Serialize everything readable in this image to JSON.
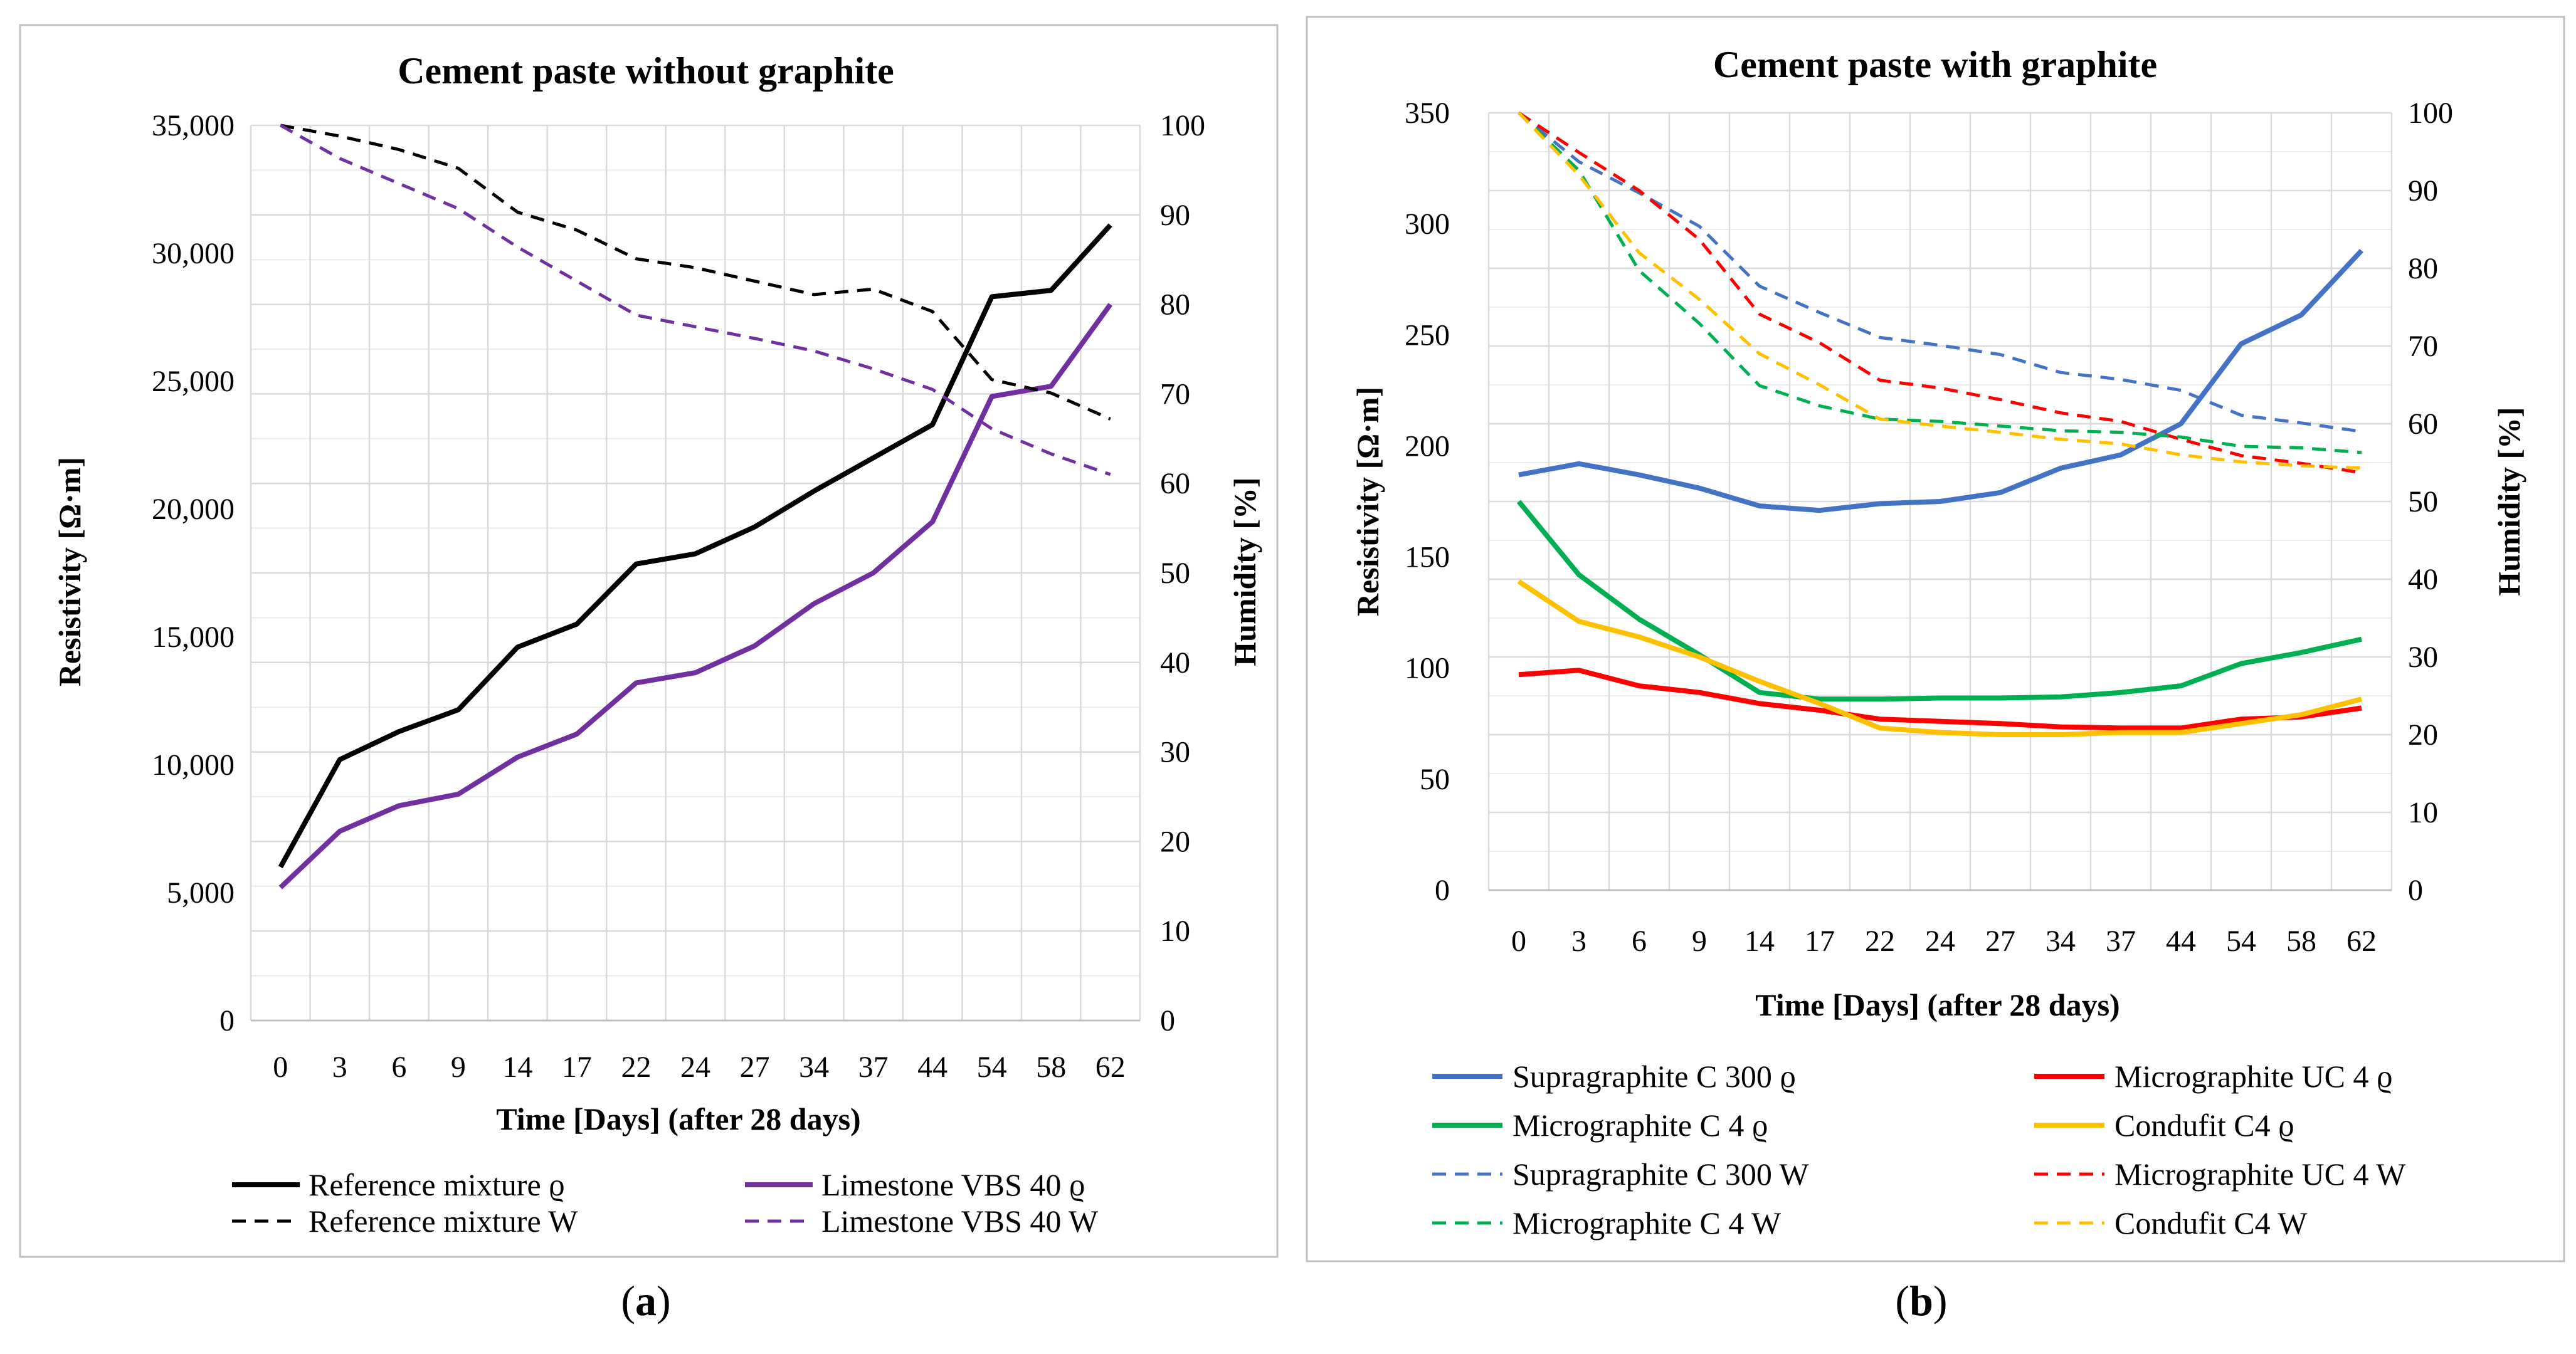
{
  "chart_data": [
    {
      "type": "line",
      "panel_label": "a",
      "title": "Cement paste without graphite",
      "xlabel": "Time [Days] (after 28 days)",
      "ylabel": "Resistivity [Ω·m]",
      "y2label": "Humidity [%]",
      "categories": [
        "0",
        "3",
        "6",
        "9",
        "14",
        "17",
        "22",
        "24",
        "27",
        "34",
        "37",
        "44",
        "54",
        "58",
        "62"
      ],
      "ylim": [
        0,
        35000
      ],
      "yticks": [
        "0",
        "5,000",
        "10,000",
        "15,000",
        "20,000",
        "25,000",
        "30,000",
        "35,000"
      ],
      "y2lim": [
        0,
        100
      ],
      "y2ticks": [
        "0",
        "10",
        "20",
        "30",
        "40",
        "50",
        "60",
        "70",
        "80",
        "90",
        "100"
      ],
      "grid": true,
      "legend_position": "bottom",
      "series": [
        {
          "name": "Reference mixture ϱ",
          "axis": "left",
          "color": "#000000",
          "dash": "solid",
          "values": [
            6000,
            10200,
            11300,
            12150,
            14600,
            15500,
            17850,
            18250,
            19300,
            20700,
            22000,
            23300,
            28300,
            28550,
            31100
          ]
        },
        {
          "name": "Limestone VBS 40 ϱ",
          "axis": "left",
          "color": "#7030A0",
          "dash": "solid",
          "values": [
            5200,
            7400,
            8400,
            8850,
            10300,
            11200,
            13200,
            13600,
            14650,
            16300,
            17500,
            19500,
            24400,
            24800,
            28000
          ]
        },
        {
          "name": "Reference mixture W",
          "axis": "right",
          "color": "#000000",
          "dash": "dashed",
          "values": [
            100,
            98.8,
            97.3,
            95.2,
            90.3,
            88.3,
            85.1,
            84.1,
            82.6,
            81.1,
            81.7,
            79.2,
            71.6,
            70.1,
            67.2
          ]
        },
        {
          "name": "Limestone VBS 40 W",
          "axis": "right",
          "color": "#7030A0",
          "dash": "dashed",
          "values": [
            100,
            96.3,
            93.5,
            90.7,
            86.4,
            82.6,
            78.8,
            77.5,
            76.2,
            74.8,
            72.8,
            70.5,
            66.1,
            63.3,
            61
          ]
        }
      ]
    },
    {
      "type": "line",
      "panel_label": "b",
      "title": "Cement paste with graphite",
      "xlabel": "Time [Days] (after 28 days)",
      "ylabel": "Resistivity [Ω·m]",
      "y2label": "Humidity [%]",
      "categories": [
        "0",
        "3",
        "6",
        "9",
        "14",
        "17",
        "22",
        "24",
        "27",
        "34",
        "37",
        "44",
        "54",
        "58",
        "62"
      ],
      "ylim": [
        0,
        350
      ],
      "yticks": [
        "0",
        "50",
        "100",
        "150",
        "200",
        "250",
        "300",
        "350"
      ],
      "y2lim": [
        0,
        100
      ],
      "y2ticks": [
        "0",
        "10",
        "20",
        "30",
        "40",
        "50",
        "60",
        "70",
        "80",
        "90",
        "100"
      ],
      "grid": true,
      "legend_position": "bottom",
      "series": [
        {
          "name": "Supragraphite C 300 ϱ",
          "axis": "left",
          "color": "#4472C4",
          "dash": "solid",
          "values": [
            187,
            192,
            187,
            181,
            173,
            171,
            174,
            175,
            179,
            190,
            196,
            210,
            246,
            259,
            288
          ]
        },
        {
          "name": "Micrographite UC 4 ϱ",
          "axis": "left",
          "color": "#FF0000",
          "dash": "solid",
          "values": [
            97,
            99,
            92,
            89,
            84,
            81,
            77,
            76,
            75,
            73.5,
            73,
            73,
            77,
            78,
            82
          ]
        },
        {
          "name": "Micrographite C 4 ϱ",
          "axis": "left",
          "color": "#00B050",
          "dash": "solid",
          "values": [
            175,
            142,
            122,
            106,
            89,
            86,
            86,
            86.5,
            86.5,
            87,
            89,
            92,
            102,
            107,
            113
          ]
        },
        {
          "name": "Condufit C4 ϱ",
          "axis": "left",
          "color": "#FFC000",
          "dash": "solid",
          "values": [
            139,
            121,
            114,
            105,
            94,
            84,
            73,
            71,
            70,
            70,
            71,
            71,
            75,
            79,
            86
          ]
        },
        {
          "name": "Supragraphite C 300 W",
          "axis": "right",
          "color": "#4472C4",
          "dash": "dashed",
          "values": [
            100,
            93.7,
            89.7,
            85.4,
            77.7,
            74.3,
            71.1,
            70.1,
            68.9,
            66.6,
            65.7,
            64.3,
            61.1,
            60.1,
            59
          ]
        },
        {
          "name": "Micrographite UC 4 W",
          "axis": "right",
          "color": "#FF0000",
          "dash": "dashed",
          "values": [
            100,
            94.9,
            90,
            83.7,
            74.1,
            70.4,
            65.6,
            64.6,
            63.1,
            61.4,
            60.3,
            58,
            55.9,
            54.9,
            53.7
          ]
        },
        {
          "name": "Micrographite C 4 W",
          "axis": "right",
          "color": "#00B050",
          "dash": "dashed",
          "values": [
            100,
            92.6,
            79.7,
            72.9,
            64.9,
            62.3,
            60.6,
            60.3,
            59.7,
            59.1,
            58.9,
            58.3,
            57.1,
            56.9,
            56.3
          ]
        },
        {
          "name": "Condufit C4 W",
          "axis": "right",
          "color": "#FFC000",
          "dash": "dashed",
          "values": [
            100,
            92,
            82,
            76,
            69,
            65,
            60.6,
            59.7,
            58.9,
            58,
            57.4,
            56,
            55.1,
            54.6,
            54.3
          ]
        }
      ]
    }
  ]
}
